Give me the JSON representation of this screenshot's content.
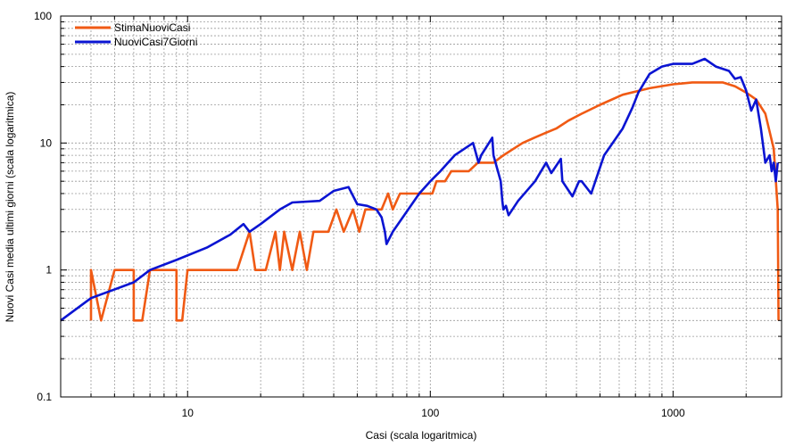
{
  "chart_data": {
    "type": "line",
    "title": "",
    "xlabel": "Casi (scala logaritmica)",
    "ylabel": "Nuovi Casi media ultimi giorni (scala logaritmica)",
    "xscale": "log",
    "yscale": "log",
    "xlim": [
      3,
      2800
    ],
    "ylim": [
      0.1,
      100
    ],
    "xticks": [
      10,
      100,
      1000
    ],
    "xtick_labels": [
      "10",
      "100",
      "1000"
    ],
    "yticks": [
      0.1,
      1,
      10,
      100
    ],
    "ytick_labels": [
      "0.1",
      "1",
      "10",
      "100"
    ],
    "grid": true,
    "legend_position": "top-left",
    "series": [
      {
        "name": "StimaNuoviCasi",
        "color": "#f05a14",
        "points": [
          [
            4,
            0.4
          ],
          [
            4,
            1
          ],
          [
            4.4,
            0.4
          ],
          [
            5,
            1
          ],
          [
            6,
            1
          ],
          [
            6,
            0.4
          ],
          [
            6.5,
            0.4
          ],
          [
            7,
            1
          ],
          [
            9,
            1
          ],
          [
            9,
            0.4
          ],
          [
            9.5,
            0.4
          ],
          [
            10,
            1
          ],
          [
            16,
            1
          ],
          [
            18,
            2
          ],
          [
            19,
            1
          ],
          [
            21,
            1
          ],
          [
            23,
            2
          ],
          [
            24,
            1
          ],
          [
            25,
            2
          ],
          [
            27,
            1
          ],
          [
            29,
            2
          ],
          [
            31,
            1
          ],
          [
            33,
            2
          ],
          [
            38,
            2
          ],
          [
            41,
            3
          ],
          [
            44,
            2
          ],
          [
            48,
            3
          ],
          [
            51,
            2
          ],
          [
            54,
            3
          ],
          [
            63,
            3
          ],
          [
            67,
            4
          ],
          [
            70,
            3
          ],
          [
            75,
            4
          ],
          [
            95,
            4
          ],
          [
            98,
            4
          ],
          [
            102,
            4
          ],
          [
            106,
            5
          ],
          [
            115,
            5
          ],
          [
            122,
            6
          ],
          [
            144,
            6
          ],
          [
            157,
            7
          ],
          [
            182,
            7
          ],
          [
            200,
            8
          ],
          [
            220,
            9
          ],
          [
            240,
            10
          ],
          [
            268,
            11
          ],
          [
            298,
            12
          ],
          [
            330,
            13
          ],
          [
            370,
            15
          ],
          [
            420,
            17
          ],
          [
            500,
            20
          ],
          [
            620,
            24
          ],
          [
            800,
            27
          ],
          [
            1000,
            29
          ],
          [
            1200,
            30
          ],
          [
            1400,
            30
          ],
          [
            1600,
            30
          ],
          [
            1800,
            28
          ],
          [
            2000,
            25
          ],
          [
            2200,
            22
          ],
          [
            2400,
            17
          ],
          [
            2600,
            9
          ],
          [
            2700,
            3
          ],
          [
            2720,
            0.4
          ]
        ]
      },
      {
        "name": "NuoviCasi7Giorni",
        "color": "#0a14d2",
        "points": [
          [
            3,
            0.4
          ],
          [
            4,
            0.6
          ],
          [
            6,
            0.8
          ],
          [
            7,
            1
          ],
          [
            9,
            1.2
          ],
          [
            12,
            1.5
          ],
          [
            15,
            1.9
          ],
          [
            17,
            2.3
          ],
          [
            18,
            2
          ],
          [
            20,
            2.3
          ],
          [
            24,
            3
          ],
          [
            27,
            3.4
          ],
          [
            35,
            3.5
          ],
          [
            40,
            4.2
          ],
          [
            46,
            4.5
          ],
          [
            50,
            3.3
          ],
          [
            55,
            3.2
          ],
          [
            60,
            3
          ],
          [
            63,
            2.6
          ],
          [
            65,
            2
          ],
          [
            66,
            1.6
          ],
          [
            70,
            2
          ],
          [
            90,
            4
          ],
          [
            100,
            5
          ],
          [
            110,
            6
          ],
          [
            126,
            8
          ],
          [
            150,
            10
          ],
          [
            155,
            8
          ],
          [
            158,
            7
          ],
          [
            162,
            8
          ],
          [
            180,
            11
          ],
          [
            182,
            8
          ],
          [
            195,
            5
          ],
          [
            198,
            3.5
          ],
          [
            200,
            3
          ],
          [
            205,
            3.2
          ],
          [
            210,
            2.7
          ],
          [
            230,
            3.5
          ],
          [
            270,
            5
          ],
          [
            300,
            7
          ],
          [
            315,
            5.8
          ],
          [
            345,
            7.5
          ],
          [
            350,
            5
          ],
          [
            385,
            3.8
          ],
          [
            410,
            5
          ],
          [
            420,
            5
          ],
          [
            460,
            4
          ],
          [
            520,
            8
          ],
          [
            620,
            13
          ],
          [
            680,
            19
          ],
          [
            720,
            25
          ],
          [
            800,
            35
          ],
          [
            900,
            40
          ],
          [
            1000,
            42
          ],
          [
            1200,
            42
          ],
          [
            1350,
            46
          ],
          [
            1500,
            40
          ],
          [
            1700,
            37
          ],
          [
            1800,
            32
          ],
          [
            1900,
            33
          ],
          [
            2000,
            26
          ],
          [
            2100,
            18
          ],
          [
            2200,
            22
          ],
          [
            2300,
            13
          ],
          [
            2400,
            7
          ],
          [
            2500,
            8
          ],
          [
            2550,
            6
          ],
          [
            2600,
            7
          ],
          [
            2650,
            5
          ],
          [
            2700,
            7
          ]
        ]
      }
    ]
  }
}
